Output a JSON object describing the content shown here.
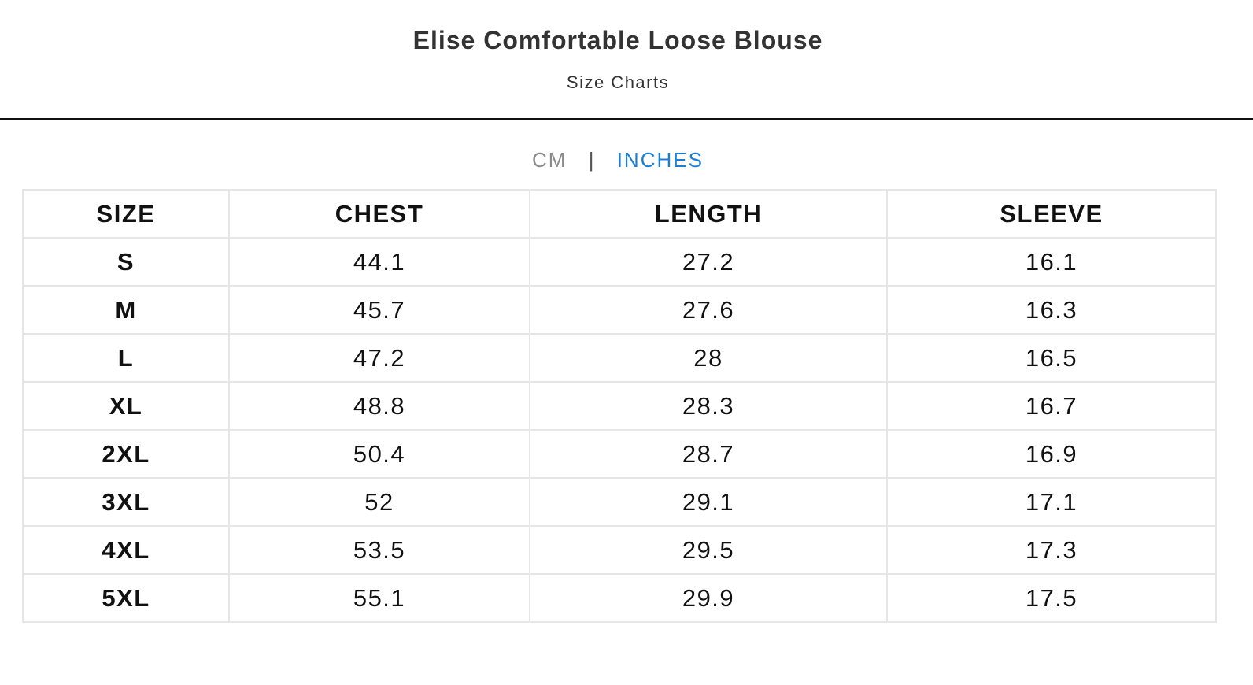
{
  "header": {
    "title": "Elise Comfortable Loose Blouse",
    "subtitle": "Size Charts"
  },
  "units": {
    "cm_label": "CM",
    "separator": "|",
    "inches_label": "INCHES",
    "active": "INCHES",
    "active_color": "#1a7fd4"
  },
  "table": {
    "headers": [
      "SIZE",
      "CHEST",
      "LENGTH",
      "SLEEVE"
    ],
    "rows": [
      [
        "S",
        "44.1",
        "27.2",
        "16.1"
      ],
      [
        "M",
        "45.7",
        "27.6",
        "16.3"
      ],
      [
        "L",
        "47.2",
        "28",
        "16.5"
      ],
      [
        "XL",
        "48.8",
        "28.3",
        "16.7"
      ],
      [
        "2XL",
        "50.4",
        "28.7",
        "16.9"
      ],
      [
        "3XL",
        "52",
        "29.1",
        "17.1"
      ],
      [
        "4XL",
        "53.5",
        "29.5",
        "17.3"
      ],
      [
        "5XL",
        "55.1",
        "29.9",
        "17.5"
      ]
    ]
  }
}
